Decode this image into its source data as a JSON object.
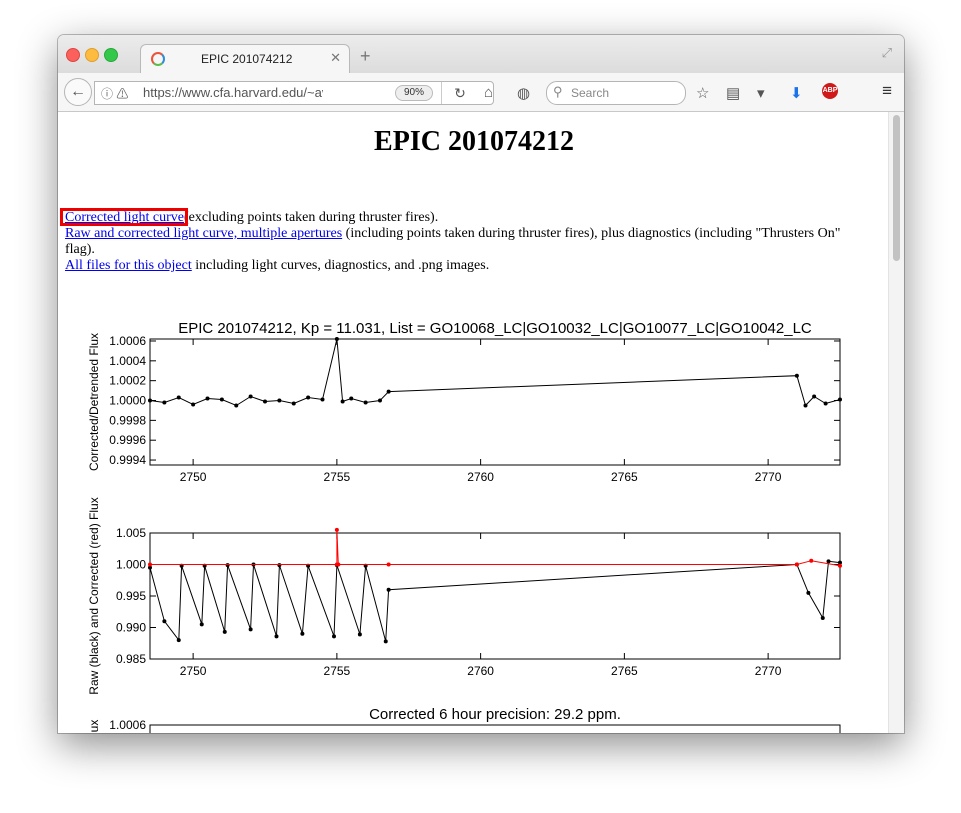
{
  "browser": {
    "tab_title": "EPIC 201074212",
    "url": "https://www.cfa.harvard.edu/~avanderburg",
    "zoom": "90%",
    "search_placeholder": "Search",
    "abp_label": "ABP"
  },
  "page": {
    "title": "EPIC 201074212",
    "link1": "Corrected light curve",
    "link1_tail": "(excluding points taken during thruster fires).",
    "link2": "Raw and corrected light curve, multiple apertures",
    "link2_tail": " (including points taken during thruster fires), plus diagnostics (including \"Thrusters On\" flag).",
    "link3": "All files for this object",
    "link3_tail": " including light curves, diagnostics, and .png images."
  },
  "chart_data": [
    {
      "type": "line",
      "title": "EPIC 201074212, Kp = 11.031, List = GO10068_LC|GO10032_LC|GO10077_LC|GO10042_LC",
      "xlabel": "",
      "ylabel": "Corrected/Detrended Flux",
      "xlim": [
        2748.5,
        2772.5
      ],
      "ylim": [
        0.99935,
        1.00062
      ],
      "xticks": [
        2750,
        2755,
        2760,
        2765,
        2770
      ],
      "yticks": [
        0.9994,
        0.9996,
        0.9998,
        1.0,
        1.0002,
        1.0004,
        1.0006
      ],
      "ytick_labels": [
        "0.9994",
        "0.9996",
        "0.9998",
        "1.0000",
        "1.0002",
        "1.0004",
        "1.0006"
      ],
      "series": [
        {
          "color": "#000000",
          "points": [
            [
              2748.5,
              1.0
            ],
            [
              2749.0,
              0.99998
            ],
            [
              2749.5,
              1.00003
            ],
            [
              2750.0,
              0.99996
            ],
            [
              2750.5,
              1.00002
            ],
            [
              2751.0,
              1.00001
            ],
            [
              2751.5,
              0.99995
            ],
            [
              2752.0,
              1.00004
            ],
            [
              2752.5,
              0.99999
            ],
            [
              2753.0,
              1.0
            ],
            [
              2753.5,
              0.99997
            ],
            [
              2754.0,
              1.00003
            ],
            [
              2754.5,
              1.00001
            ],
            [
              2755.0,
              1.00062
            ],
            [
              2755.2,
              0.99999
            ],
            [
              2755.5,
              1.00002
            ],
            [
              2756.0,
              0.99998
            ],
            [
              2756.5,
              1.0
            ],
            [
              2756.8,
              1.00009
            ],
            [
              2771.0,
              1.00025
            ],
            [
              2771.3,
              0.99995
            ],
            [
              2771.6,
              1.00004
            ],
            [
              2772.0,
              0.99997
            ],
            [
              2772.5,
              1.00001
            ]
          ]
        }
      ]
    },
    {
      "type": "line",
      "title": "",
      "xlabel": "",
      "ylabel": "Raw (black) and Corrected (red) Flux",
      "xlim": [
        2748.5,
        2772.5
      ],
      "ylim": [
        0.985,
        1.005
      ],
      "xticks": [
        2750,
        2755,
        2760,
        2765,
        2770
      ],
      "yticks": [
        0.985,
        0.99,
        0.995,
        1.0,
        1.005
      ],
      "ytick_labels": [
        "0.985",
        "0.990",
        "0.995",
        "1.000",
        "1.005"
      ],
      "series": [
        {
          "color": "#000000",
          "points": [
            [
              2748.5,
              0.9995
            ],
            [
              2749.0,
              0.991
            ],
            [
              2749.5,
              0.988
            ],
            [
              2749.6,
              0.9998
            ],
            [
              2750.3,
              0.9905
            ],
            [
              2750.4,
              0.9998
            ],
            [
              2751.1,
              0.9893
            ],
            [
              2751.2,
              0.9999
            ],
            [
              2752.0,
              0.9897
            ],
            [
              2752.1,
              1.0
            ],
            [
              2752.9,
              0.9886
            ],
            [
              2753.0,
              0.9999
            ],
            [
              2753.8,
              0.989
            ],
            [
              2754.0,
              0.9998
            ],
            [
              2754.9,
              0.9886
            ],
            [
              2755.0,
              0.9999
            ],
            [
              2755.8,
              0.9889
            ],
            [
              2756.0,
              0.9998
            ],
            [
              2756.7,
              0.9878
            ],
            [
              2756.8,
              0.996
            ],
            [
              2771.0,
              1.0
            ],
            [
              2771.4,
              0.9955
            ],
            [
              2771.9,
              0.9915
            ],
            [
              2772.1,
              1.0005
            ],
            [
              2772.5,
              1.0003
            ]
          ]
        },
        {
          "color": "#ff0000",
          "points": [
            [
              2748.5,
              1.0
            ],
            [
              2755.0,
              1.0
            ],
            [
              2755.0,
              1.0055
            ],
            [
              2755.05,
              1.0
            ],
            [
              2756.8,
              1.0
            ],
            [
              2771.0,
              1.0
            ],
            [
              2771.5,
              1.0006
            ],
            [
              2772.5,
              0.9998
            ]
          ]
        }
      ]
    },
    {
      "type": "line",
      "title": "Corrected 6 hour precision: 29.2 ppm.",
      "xlabel": "",
      "ylabel": "Flux",
      "ytick_labels": [
        "1.0006"
      ],
      "series": []
    }
  ]
}
